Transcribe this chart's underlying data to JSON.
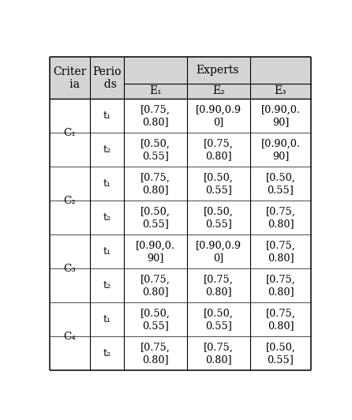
{
  "col_headers_left": [
    "Criter\nia",
    "Perio\nds"
  ],
  "col_headers_experts": "Experts",
  "expert_labels": [
    "E₁",
    "E₂",
    "E₃"
  ],
  "rows": [
    {
      "criteria": "C₁",
      "period": "t₁",
      "E1": "[0.75,\n0.80]",
      "E2": "[0.90,0.9\n0]",
      "E3": "[0.90,0.\n90]"
    },
    {
      "criteria": "C₁",
      "period": "t₂",
      "E1": "[0.50,\n0.55]",
      "E2": "[0.75,\n0.80]",
      "E3": "[0.90,0.\n90]"
    },
    {
      "criteria": "C₂",
      "period": "t₁",
      "E1": "[0.75,\n0.80]",
      "E2": "[0.50,\n0.55]",
      "E3": "[0.50,\n0.55]"
    },
    {
      "criteria": "C₂",
      "period": "t₂",
      "E1": "[0.50,\n0.55]",
      "E2": "[0.50,\n0.55]",
      "E3": "[0.75,\n0.80]"
    },
    {
      "criteria": "C₃",
      "period": "t₁",
      "E1": "[0.90,0.\n90]",
      "E2": "[0.90,0.9\n0]",
      "E3": "[0.75,\n0.80]"
    },
    {
      "criteria": "C₃",
      "period": "t₂",
      "E1": "[0.75,\n0.80]",
      "E2": "[0.75,\n0.80]",
      "E3": "[0.75,\n0.80]"
    },
    {
      "criteria": "C₄",
      "period": "t₁",
      "E1": "[0.50,\n0.55]",
      "E2": "[0.50,\n0.55]",
      "E3": "[0.75,\n0.80]"
    },
    {
      "criteria": "C₄",
      "period": "t₂",
      "E1": "[0.75,\n0.80]",
      "E2": "[0.75,\n0.80]",
      "E3": "[0.50,\n0.55]"
    }
  ],
  "criteria_groups": [
    {
      "label": "C₁",
      "rows": [
        0,
        1
      ]
    },
    {
      "label": "C₂",
      "rows": [
        2,
        3
      ]
    },
    {
      "label": "C₃",
      "rows": [
        4,
        5
      ]
    },
    {
      "label": "C₄",
      "rows": [
        6,
        7
      ]
    }
  ],
  "bg_color": "#ffffff",
  "header_bg": "#d4d4d4",
  "font_size": 10,
  "cell_font_size": 9.2
}
